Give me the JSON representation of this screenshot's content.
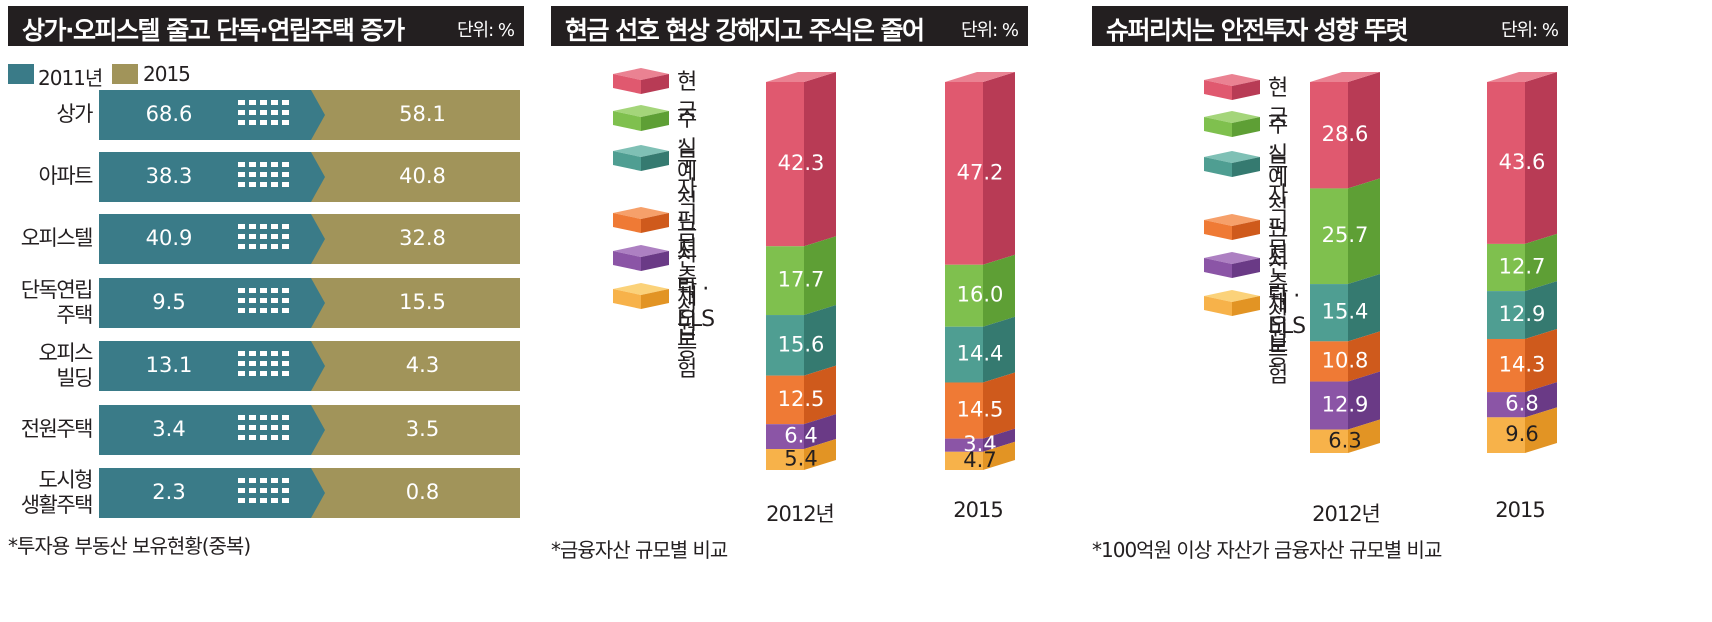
{
  "panel1": {
    "title": "상가·오피스텔 줄고 단독·연립주택 증가",
    "unit": "단위: %",
    "note": "*투자용 부동산 보유현황(중복)",
    "colors": {
      "y2011": "#3a7b88",
      "y2015": "#a1945a"
    },
    "chart_data": {
      "type": "bar",
      "series": [
        {
          "name": "2011년",
          "values": [
            68.6,
            38.3,
            40.9,
            9.5,
            13.1,
            3.4,
            2.3
          ]
        },
        {
          "name": "2015",
          "values": [
            58.1,
            40.8,
            32.8,
            15.5,
            4.3,
            3.5,
            0.8
          ]
        }
      ],
      "categories": [
        "상가",
        "아파트",
        "오피스텔",
        "단독연립\n주택",
        "오피스\n빌딩",
        "전원주택",
        "도시형\n생활주택"
      ],
      "legend": "top-left"
    }
  },
  "panel2": {
    "title": "현금 선호 현상 강해지고 주식은 줄어",
    "unit": "단위: %",
    "note": "*금융자산 규모별 비교",
    "chart_data": {
      "type": "bar",
      "stacked": true,
      "categories": [
        "2012년",
        "2015"
      ],
      "series": [
        {
          "name": "현금 · 예적금",
          "values": [
            42.3,
            47.2
          ]
        },
        {
          "name": "주식",
          "values": [
            17.7,
            16.0
          ]
        },
        {
          "name": "투자 ·\n저축성 보험",
          "values": [
            15.6,
            14.4
          ]
        },
        {
          "name": "펀드",
          "values": [
            12.5,
            14.5
          ]
        },
        {
          "name": "신탁 · ELS 등",
          "values": [
            6.4,
            3.4
          ]
        },
        {
          "name": "채권",
          "values": [
            5.4,
            4.7
          ]
        }
      ],
      "legend": "left"
    }
  },
  "panel3": {
    "title": "슈퍼리치는 안전투자 성향 뚜렷",
    "unit": "단위: %",
    "note": "*100억원 이상 자산가 금융자산 규모별 비교",
    "chart_data": {
      "type": "bar",
      "stacked": true,
      "categories": [
        "2012년",
        "2015"
      ],
      "series": [
        {
          "name": "현금 · 예적금",
          "values": [
            28.6,
            43.6
          ]
        },
        {
          "name": "주식",
          "values": [
            25.7,
            12.7
          ]
        },
        {
          "name": "투자 ·\n저축성 보험",
          "values": [
            15.4,
            12.9
          ]
        },
        {
          "name": "펀드",
          "values": [
            10.8,
            14.3
          ]
        },
        {
          "name": "신탁 · ELS 등",
          "values": [
            12.9,
            6.8
          ]
        },
        {
          "name": "채권",
          "values": [
            6.3,
            9.6
          ]
        }
      ],
      "legend": "left"
    }
  },
  "segment_colors": [
    {
      "front": "#e0596f",
      "side": "#b83b55",
      "top": "#ea8292"
    },
    {
      "front": "#7fc04e",
      "side": "#5e9f35",
      "top": "#a4d57a"
    },
    {
      "front": "#4f9e92",
      "side": "#357a70",
      "top": "#7fc0b5"
    },
    {
      "front": "#ef7a35",
      "side": "#cf5a1c",
      "top": "#f6a06a"
    },
    {
      "front": "#8b55a6",
      "side": "#6a3a86",
      "top": "#ad80c2"
    },
    {
      "front": "#f7b24a",
      "side": "#e29424",
      "top": "#fbd27a"
    }
  ]
}
